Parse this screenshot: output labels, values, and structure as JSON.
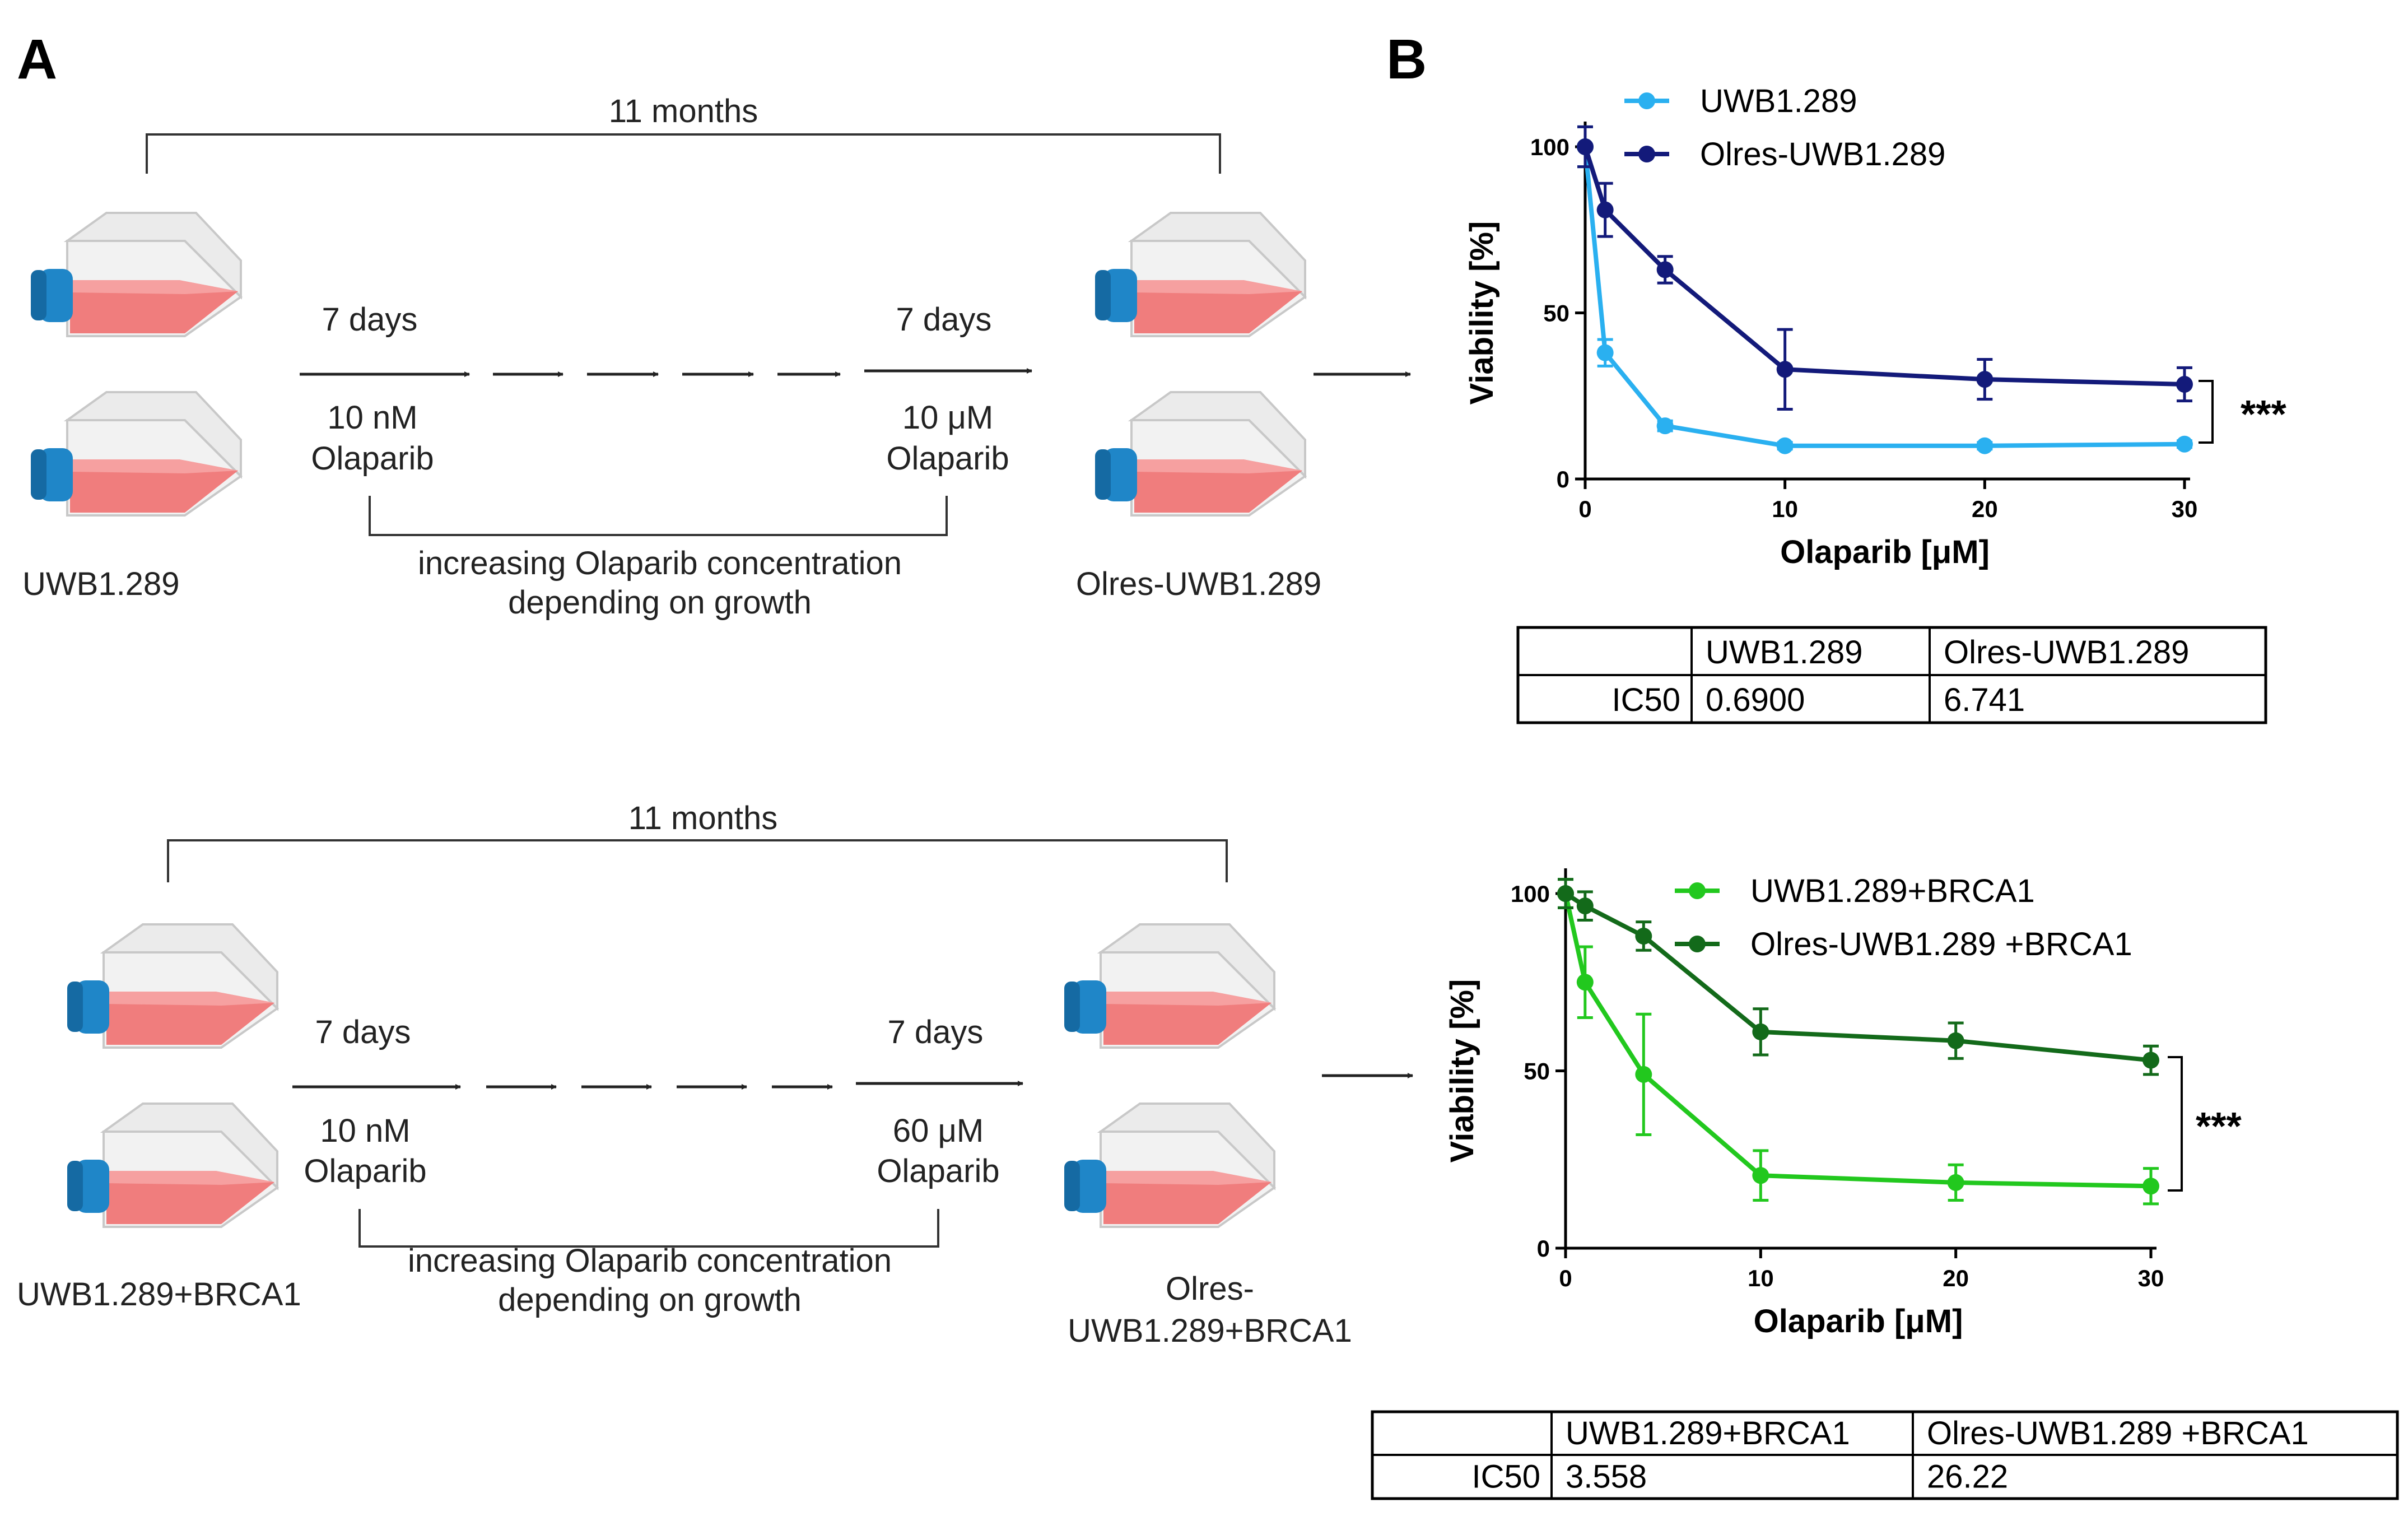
{
  "panels": {
    "a": "A",
    "b": "B"
  },
  "diagram": {
    "top": {
      "duration": "11 months",
      "first_step_days": "7 days",
      "last_step_days": "7 days",
      "start_conc": "10 nM",
      "start_drug": "Olaparib",
      "end_conc": "10 μM",
      "end_drug": "Olaparib",
      "note_line1": "increasing Olaparib concentration",
      "note_line2": "depending on growth",
      "start_label": "UWB1.289",
      "end_label": "Olres-UWB1.289"
    },
    "bottom": {
      "duration": "11 months",
      "first_step_days": "7 days",
      "last_step_days": "7 days",
      "start_conc": "10 nM",
      "start_drug": "Olaparib",
      "end_conc": "60 μM",
      "end_drug": "Olaparib",
      "note_line1": "increasing Olaparib concentration",
      "note_line2": "depending on growth",
      "start_label": "UWB1.289+BRCA1",
      "end_label_line1": "Olres-",
      "end_label_line2": "UWB1.289+BRCA1"
    }
  },
  "colors": {
    "light_blue": "#2ab0f0",
    "dark_blue": "#131a7a",
    "light_green": "#22c81e",
    "dark_green": "#136a1a",
    "flask_cap": "#1f86c8",
    "flask_liquid": "#f07d7d"
  },
  "chart_data": [
    {
      "type": "line",
      "xlabel": "Olaparib [μM]",
      "ylabel": "Viability [%]",
      "xlim": [
        0,
        30
      ],
      "ylim": [
        0,
        100
      ],
      "x_ticks": [
        0,
        10,
        20,
        30
      ],
      "y_ticks": [
        0,
        50,
        100
      ],
      "legend_position": "top-right",
      "significance": "***",
      "series": [
        {
          "name": "UWB1.289",
          "color": "#2ab0f0",
          "x": [
            0,
            1,
            4,
            10,
            20,
            30
          ],
          "values": [
            100,
            38,
            16,
            10,
            10,
            10.5
          ],
          "errors": [
            6,
            4,
            1.5,
            1,
            1,
            1
          ]
        },
        {
          "name": "Olres-UWB1.289",
          "color": "#131a7a",
          "x": [
            0,
            1,
            4,
            10,
            20,
            30
          ],
          "values": [
            100,
            81,
            63,
            33,
            30,
            28.5
          ],
          "errors": [
            6,
            8,
            4,
            12,
            6,
            5
          ]
        }
      ],
      "table": {
        "header": [
          "",
          "UWB1.289",
          "Olres-UWB1.289"
        ],
        "row_label": "IC50",
        "row_values": [
          "0.6900",
          "6.741"
        ]
      }
    },
    {
      "type": "line",
      "xlabel": "Olaparib [μM]",
      "ylabel": "Viability [%]",
      "xlim": [
        0,
        30
      ],
      "ylim": [
        0,
        100
      ],
      "x_ticks": [
        0,
        10,
        20,
        30
      ],
      "y_ticks": [
        0,
        50,
        100
      ],
      "legend_position": "top-right",
      "significance": "***",
      "series": [
        {
          "name": "UWB1.289+BRCA1",
          "color": "#22c81e",
          "x": [
            0,
            1,
            4,
            10,
            20,
            30
          ],
          "values": [
            100,
            75,
            49,
            20.5,
            18.5,
            17.5
          ],
          "errors": [
            4,
            10,
            17,
            7,
            5,
            5
          ]
        },
        {
          "name": "Olres-UWB1.289 +BRCA1",
          "color": "#136a1a",
          "x": [
            0,
            1,
            4,
            10,
            20,
            30
          ],
          "values": [
            100,
            96.5,
            88,
            61,
            58.5,
            53
          ],
          "errors": [
            4,
            4,
            4,
            6.5,
            5,
            4
          ]
        }
      ],
      "table": {
        "header": [
          "",
          "UWB1.289+BRCA1",
          "Olres-UWB1.289 +BRCA1"
        ],
        "row_label": "IC50",
        "row_values": [
          "3.558",
          "26.22"
        ]
      }
    }
  ]
}
